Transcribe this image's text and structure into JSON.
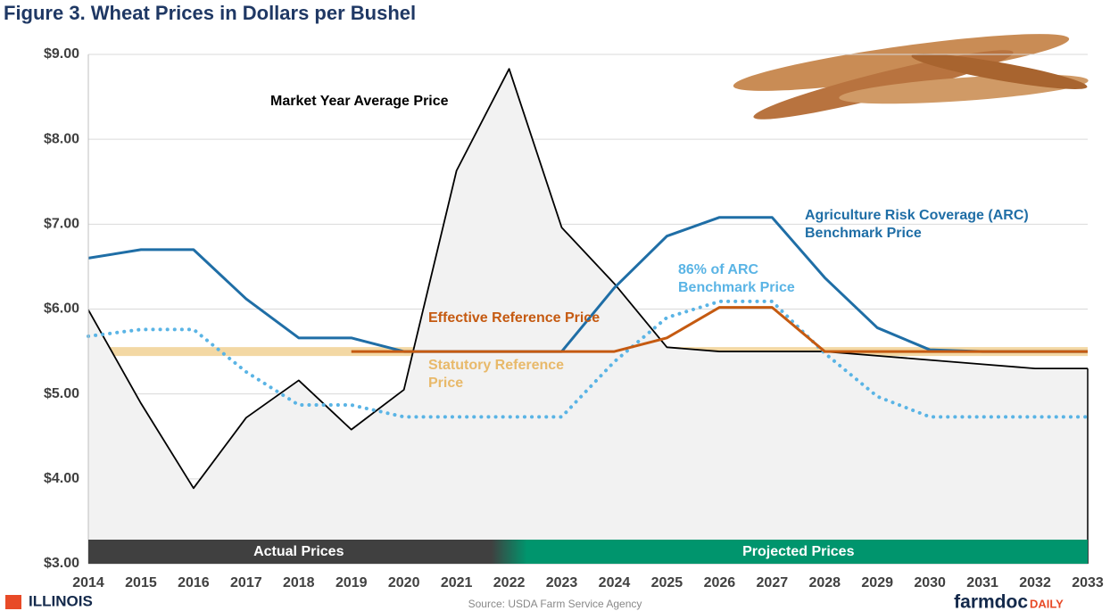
{
  "chart_data": {
    "type": "line",
    "title": "Figure 3. Wheat Prices in Dollars per Bushel",
    "x": [
      2014,
      2015,
      2016,
      2017,
      2018,
      2019,
      2020,
      2021,
      2022,
      2023,
      2024,
      2025,
      2026,
      2027,
      2028,
      2029,
      2030,
      2031,
      2032,
      2033
    ],
    "xlim": [
      2014,
      2033
    ],
    "ylim": [
      3,
      9
    ],
    "yticks": [
      {
        "value": 3,
        "label": "$3.00"
      },
      {
        "value": 4,
        "label": "$4.00"
      },
      {
        "value": 5,
        "label": "$5.00"
      },
      {
        "value": 6,
        "label": "$6.00"
      },
      {
        "value": 7,
        "label": "$7.00"
      },
      {
        "value": 8,
        "label": "$8.00"
      },
      {
        "value": 9,
        "label": "$9.00"
      }
    ],
    "grid": true,
    "series": [
      {
        "name": "Statutory Reference Price",
        "color": "#f3d8a4",
        "style": "band",
        "values": [
          5.5,
          5.5,
          5.5,
          5.5,
          5.5,
          5.5,
          5.5,
          5.5,
          5.5,
          5.5,
          5.5,
          5.5,
          5.5,
          5.5,
          5.5,
          5.5,
          5.5,
          5.5,
          5.5,
          5.5
        ]
      },
      {
        "name": "Market Year Average Price",
        "color": "#000000",
        "style": "area",
        "fill": "#f2f2f2",
        "values": [
          5.99,
          4.89,
          3.89,
          4.72,
          5.16,
          4.58,
          5.05,
          7.63,
          8.83,
          6.96,
          6.3,
          5.55,
          5.5,
          5.5,
          5.5,
          5.45,
          5.4,
          5.35,
          5.3,
          5.3
        ]
      },
      {
        "name": "Agriculture Risk Coverage (ARC) Benchmark Price",
        "color": "#1f6ea6",
        "style": "solid",
        "values": [
          6.6,
          6.7,
          6.7,
          6.12,
          5.66,
          5.66,
          5.5,
          5.5,
          5.5,
          5.5,
          6.25,
          6.86,
          7.08,
          7.08,
          6.37,
          5.78,
          5.52,
          5.5,
          5.5,
          5.5
        ]
      },
      {
        "name": "86% of ARC Benchmark Price",
        "color": "#5ab4e5",
        "style": "dotted",
        "values": [
          5.68,
          5.76,
          5.76,
          5.26,
          4.87,
          4.87,
          4.73,
          4.73,
          4.73,
          4.73,
          5.38,
          5.9,
          6.09,
          6.09,
          5.48,
          4.97,
          4.73,
          4.73,
          4.73,
          4.73
        ]
      },
      {
        "name": "Effective Reference Price",
        "color": "#c55a11",
        "style": "solid",
        "values": [
          null,
          null,
          null,
          null,
          null,
          5.5,
          5.5,
          5.5,
          5.5,
          5.5,
          5.5,
          5.66,
          6.02,
          6.02,
          5.5,
          5.5,
          5.5,
          5.5,
          5.5,
          5.5
        ]
      }
    ],
    "bands": [
      {
        "label": "Actual Prices",
        "from": 2014,
        "to": 2022,
        "color": "#404040"
      },
      {
        "label": "Projected Prices",
        "from": 2022,
        "to": 2033,
        "color": "#00956d"
      }
    ],
    "footer": {
      "logo": "ILLINOIS",
      "source": "Source: USDA Farm Service Agency",
      "brand": "farmdoc",
      "brand_suffix": "DAILY"
    }
  }
}
